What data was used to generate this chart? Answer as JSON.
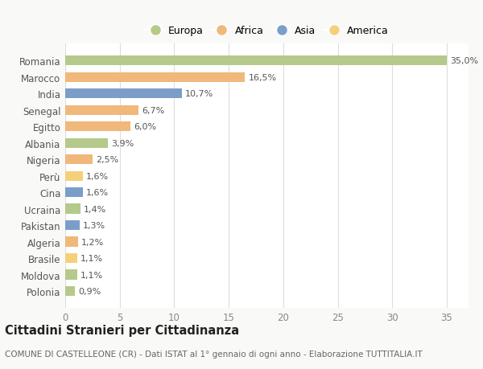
{
  "countries": [
    "Romania",
    "Marocco",
    "India",
    "Senegal",
    "Egitto",
    "Albania",
    "Nigeria",
    "Perù",
    "Cina",
    "Ucraina",
    "Pakistan",
    "Algeria",
    "Brasile",
    "Moldova",
    "Polonia"
  ],
  "values": [
    35.0,
    16.5,
    10.7,
    6.7,
    6.0,
    3.9,
    2.5,
    1.6,
    1.6,
    1.4,
    1.3,
    1.2,
    1.1,
    1.1,
    0.9
  ],
  "labels": [
    "35,0%",
    "16,5%",
    "10,7%",
    "6,7%",
    "6,0%",
    "3,9%",
    "2,5%",
    "1,6%",
    "1,6%",
    "1,4%",
    "1,3%",
    "1,2%",
    "1,1%",
    "1,1%",
    "0,9%"
  ],
  "continents": [
    "Europa",
    "Africa",
    "Asia",
    "Africa",
    "Africa",
    "Europa",
    "Africa",
    "America",
    "Asia",
    "Europa",
    "Asia",
    "Africa",
    "America",
    "Europa",
    "Europa"
  ],
  "continent_colors": {
    "Europa": "#b5c98a",
    "Africa": "#f0b87a",
    "Asia": "#7b9ec9",
    "America": "#f5d07a"
  },
  "legend_order": [
    "Europa",
    "Africa",
    "Asia",
    "America"
  ],
  "title": "Cittadini Stranieri per Cittadinanza",
  "subtitle": "COMUNE DI CASTELLEONE (CR) - Dati ISTAT al 1° gennaio di ogni anno - Elaborazione TUTTITALIA.IT",
  "bg_color": "#f9f9f7",
  "plot_bg_color": "#ffffff",
  "xlim": [
    0,
    37
  ],
  "xticks": [
    0,
    5,
    10,
    15,
    20,
    25,
    30,
    35
  ],
  "bar_height": 0.6,
  "label_fontsize": 8,
  "ytick_fontsize": 8.5,
  "xtick_fontsize": 8.5,
  "title_fontsize": 10.5,
  "subtitle_fontsize": 7.5,
  "legend_fontsize": 9
}
